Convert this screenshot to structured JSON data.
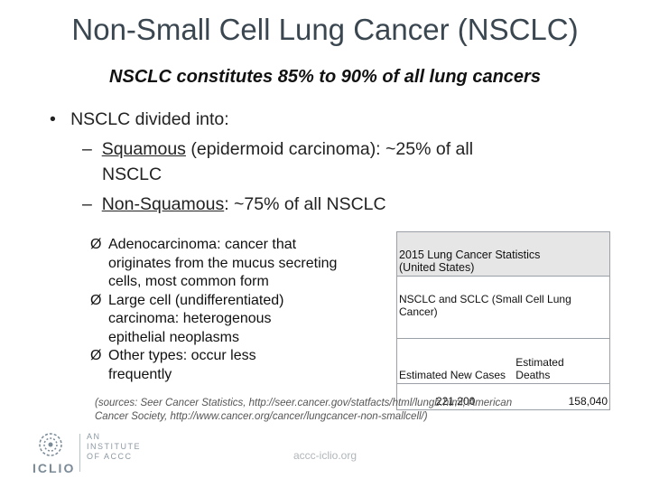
{
  "title": "Non-Small Cell Lung Cancer (NSCLC)",
  "subtitle": "NSCLC constitutes 85% to 90% of all lung cancers",
  "bullets": {
    "main": {
      "marker": "•",
      "text": "NSCLC divided into:"
    },
    "sub1": {
      "marker": "–",
      "term": "Squamous",
      "rest": " (epidermoid carcinoma): ~25% of all",
      "rest2": "NSCLC"
    },
    "sub2": {
      "marker": "–",
      "term": "Non-Squamous",
      "rest": ": ~75% of all NSCLC"
    }
  },
  "arrow_items": [
    {
      "marker": "Ø",
      "lines": [
        "Adenocarcinoma: cancer that",
        "originates from the mucus secreting",
        "cells, most common form"
      ]
    },
    {
      "marker": "Ø",
      "lines": [
        "Large cell (undifferentiated)",
        "carcinoma: heterogenous",
        "epithelial neoplasms"
      ]
    },
    {
      "marker": "Ø",
      "lines": [
        "Other types: occur less",
        "frequently"
      ]
    }
  ],
  "table": {
    "header_line1": "2015 Lung Cancer Statistics",
    "header_line2": "(United States)",
    "subheader_line1": "NSCLC and SCLC (Small Cell Lung",
    "subheader_line2": "Cancer)",
    "col1_label": "Estimated New Cases",
    "col2_label_line1": "Estimated",
    "col2_label_line2": "Deaths",
    "col1_value": "221,200",
    "col2_value": "158,040"
  },
  "source_line1": "(sources: Seer Cancer Statistics, http://seer.cancer.gov/statfacts/html/lungb.html;  American",
  "source_line2": "Cancer Society, http://www.cancer.org/cancer/lungcancer-non-smallcell/)",
  "logo": {
    "wordmark": "ICLIO",
    "tag_line1": "AN",
    "tag_line2": "INSTITUTE",
    "tag_line3": "OF ACCC"
  },
  "footer_url": "accc-iclio.org",
  "colors": {
    "title": "#3a4650",
    "table_header_bg": "#e6e6e6",
    "logo": "#7a8a96"
  }
}
